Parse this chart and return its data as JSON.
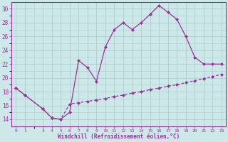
{
  "xlabel": "Windchill (Refroidissement éolien,°C)",
  "background_color": "#cce8e8",
  "line_color": "#993399",
  "grid_color": "#b0cccc",
  "xlim": [
    -0.5,
    23.5
  ],
  "ylim": [
    13,
    31
  ],
  "xticks": [
    0,
    1,
    3,
    4,
    5,
    6,
    7,
    8,
    9,
    10,
    11,
    12,
    13,
    14,
    15,
    16,
    17,
    18,
    19,
    20,
    21,
    22,
    23
  ],
  "yticks": [
    14,
    16,
    18,
    20,
    22,
    24,
    26,
    28,
    30
  ],
  "curve1_x": [
    0,
    1,
    3,
    4,
    5,
    6,
    7,
    8,
    9,
    10,
    11,
    12,
    13,
    14,
    15,
    16,
    17,
    18,
    19,
    20,
    21,
    22,
    23
  ],
  "curve1_y": [
    18.5,
    17.5,
    15.5,
    14.2,
    14.0,
    15.0,
    22.5,
    21.5,
    19.5,
    24.5,
    27.0,
    28.0,
    27.0,
    28.0,
    29.2,
    30.5,
    29.5,
    28.5,
    26.0,
    23.0,
    22.0,
    22.0,
    22.0
  ],
  "curve2_x": [
    0,
    1,
    3,
    4,
    5,
    6,
    7,
    8,
    9,
    10,
    11,
    12,
    13,
    14,
    15,
    16,
    17,
    18,
    19,
    20,
    21,
    22,
    23
  ],
  "curve2_y": [
    18.5,
    17.5,
    15.5,
    14.2,
    14.0,
    16.2,
    16.4,
    16.6,
    16.8,
    17.0,
    17.3,
    17.5,
    17.8,
    18.0,
    18.3,
    18.5,
    18.8,
    19.0,
    19.3,
    19.6,
    19.9,
    20.2,
    20.5
  ]
}
